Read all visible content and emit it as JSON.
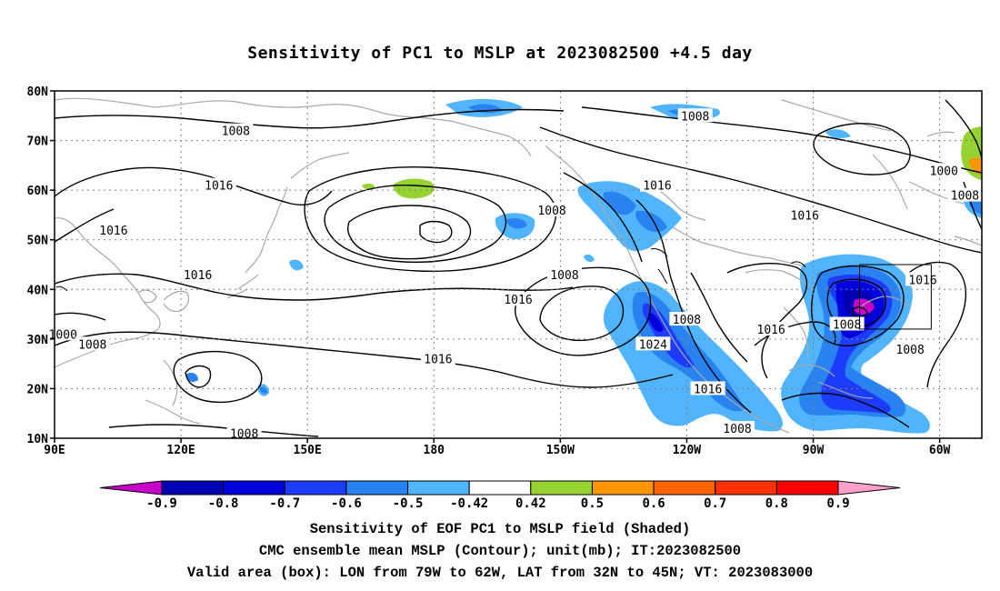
{
  "title": "Sensitivity of PC1 to MSLP at 2023082500 +4.5 day",
  "axes": {
    "lat_labels": [
      "80N",
      "70N",
      "60N",
      "50N",
      "40N",
      "30N",
      "20N",
      "10N"
    ],
    "lon_labels": [
      "90E",
      "120E",
      "150E",
      "180",
      "150W",
      "120W",
      "90W",
      "60W"
    ],
    "lon_range": [
      90,
      310
    ],
    "lat_range": [
      10,
      80
    ],
    "grid": "dotted"
  },
  "colorbar": {
    "labels": [
      "-0.9",
      "-0.8",
      "-0.7",
      "-0.6",
      "-0.5",
      "-0.42",
      "0.42",
      "0.5",
      "0.6",
      "0.7",
      "0.8",
      "0.9"
    ],
    "colors": [
      "#c800c8",
      "#0000b4",
      "#0000dc",
      "#1e3cff",
      "#2882f0",
      "#50b4ff",
      "#ffffff",
      "#96d232",
      "#ff9600",
      "#ff6400",
      "#ff3200",
      "#ff0000",
      "#ffa0c8"
    ]
  },
  "contour_labels": [
    {
      "text": "1008",
      "lon": 133,
      "lat": 72
    },
    {
      "text": "1008",
      "lon": 242,
      "lat": 75
    },
    {
      "text": "1000",
      "lon": 301,
      "lat": 64
    },
    {
      "text": "1008",
      "lon": 306,
      "lat": 59
    },
    {
      "text": "1016",
      "lon": 129,
      "lat": 61
    },
    {
      "text": "1016",
      "lon": 104,
      "lat": 52
    },
    {
      "text": "1008",
      "lon": 208,
      "lat": 56
    },
    {
      "text": "1016",
      "lon": 233,
      "lat": 61
    },
    {
      "text": "1016",
      "lon": 268,
      "lat": 55
    },
    {
      "text": "1016",
      "lon": 124,
      "lat": 43
    },
    {
      "text": "1008",
      "lon": 211,
      "lat": 43
    },
    {
      "text": "1016",
      "lon": 200,
      "lat": 38
    },
    {
      "text": "1016",
      "lon": 296,
      "lat": 42
    },
    {
      "text": "1008",
      "lon": 240,
      "lat": 34
    },
    {
      "text": "1016",
      "lon": 260,
      "lat": 32
    },
    {
      "text": "1008",
      "lon": 278,
      "lat": 33
    },
    {
      "text": "1008",
      "lon": 293,
      "lat": 28
    },
    {
      "text": "1024",
      "lon": 232,
      "lat": 29
    },
    {
      "text": "1016",
      "lon": 181,
      "lat": 26
    },
    {
      "text": "1016",
      "lon": 245,
      "lat": 20
    },
    {
      "text": "1008",
      "lon": 252,
      "lat": 12
    },
    {
      "text": "1008",
      "lon": 135,
      "lat": 11
    },
    {
      "text": "1000",
      "lon": 92,
      "lat": 31
    },
    {
      "text": "1008",
      "lon": 99,
      "lat": 29
    }
  ],
  "valid_box": {
    "lon": [
      281,
      298
    ],
    "lat": [
      32,
      45
    ]
  },
  "captions": {
    "line1": "Sensitivity of EOF PC1 to MSLP field (Shaded)",
    "line2": "CMC ensemble mean MSLP (Contour); unit(mb); IT:2023082500",
    "line3": "Valid area (box): LON from 79W to 62W, LAT from 32N to 45N; VT: 2023083000"
  }
}
